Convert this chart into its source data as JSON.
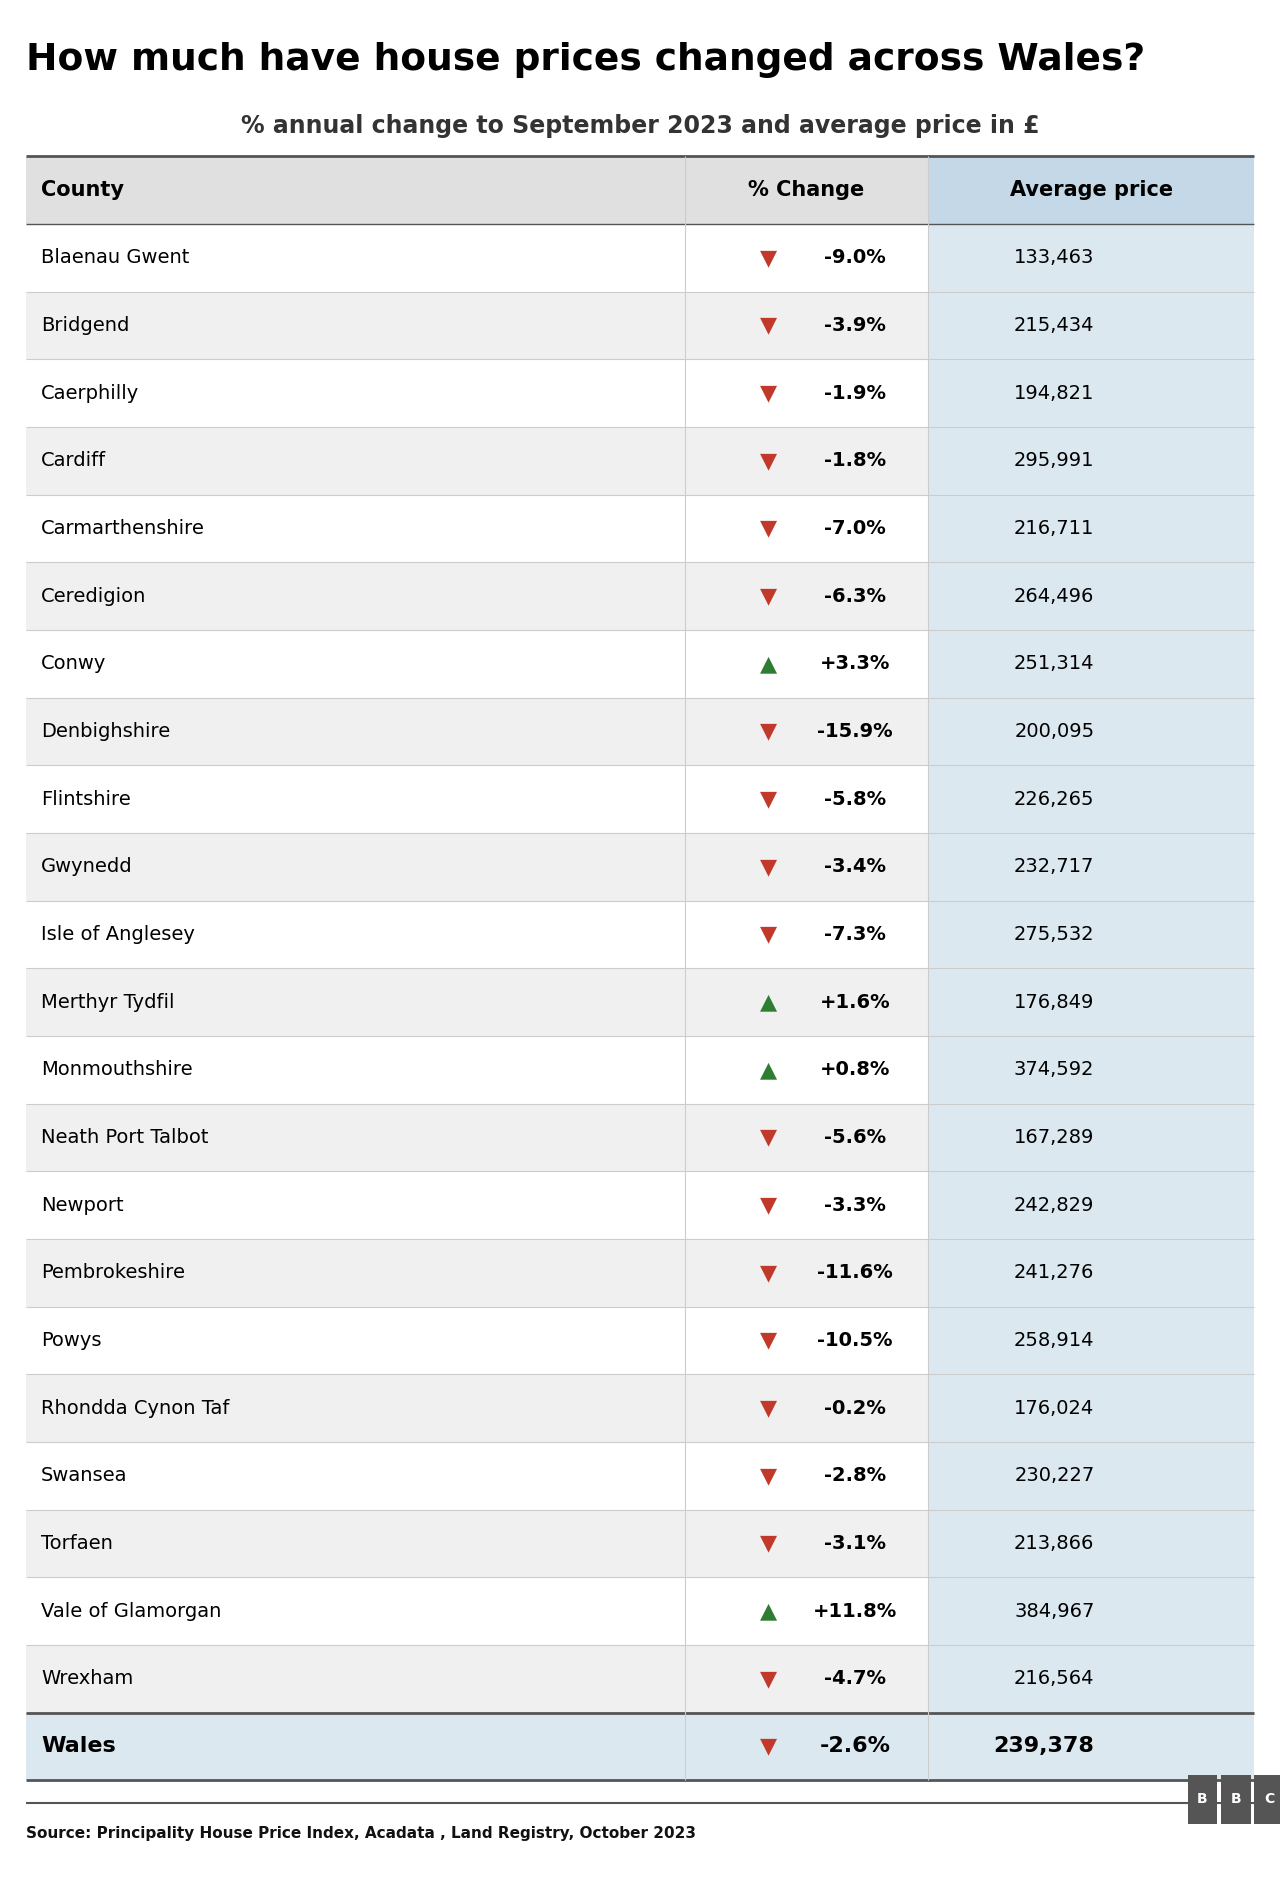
{
  "title": "How much have house prices changed across Wales?",
  "subtitle": "% annual change to September 2023 and average price in £",
  "source": "Source: Principality House Price Index, Acadata , Land Registry, October 2023",
  "col_headers": [
    "County",
    "% Change",
    "Average price"
  ],
  "rows": [
    {
      "county": "Blaenau Gwent",
      "change": "-9.0%",
      "avg_price": "133,463",
      "direction": "down"
    },
    {
      "county": "Bridgend",
      "change": "-3.9%",
      "avg_price": "215,434",
      "direction": "down"
    },
    {
      "county": "Caerphilly",
      "change": "-1.9%",
      "avg_price": "194,821",
      "direction": "down"
    },
    {
      "county": "Cardiff",
      "change": "-1.8%",
      "avg_price": "295,991",
      "direction": "down"
    },
    {
      "county": "Carmarthenshire",
      "change": "-7.0%",
      "avg_price": "216,711",
      "direction": "down"
    },
    {
      "county": "Ceredigion",
      "change": "-6.3%",
      "avg_price": "264,496",
      "direction": "down"
    },
    {
      "county": "Conwy",
      "change": "+3.3%",
      "avg_price": "251,314",
      "direction": "up"
    },
    {
      "county": "Denbighshire",
      "change": "-15.9%",
      "avg_price": "200,095",
      "direction": "down"
    },
    {
      "county": "Flintshire",
      "change": "-5.8%",
      "avg_price": "226,265",
      "direction": "down"
    },
    {
      "county": "Gwynedd",
      "change": "-3.4%",
      "avg_price": "232,717",
      "direction": "down"
    },
    {
      "county": "Isle of Anglesey",
      "change": "-7.3%",
      "avg_price": "275,532",
      "direction": "down"
    },
    {
      "county": "Merthyr Tydfil",
      "change": "+1.6%",
      "avg_price": "176,849",
      "direction": "up"
    },
    {
      "county": "Monmouthshire",
      "change": "+0.8%",
      "avg_price": "374,592",
      "direction": "up"
    },
    {
      "county": "Neath Port Talbot",
      "change": "-5.6%",
      "avg_price": "167,289",
      "direction": "down"
    },
    {
      "county": "Newport",
      "change": "-3.3%",
      "avg_price": "242,829",
      "direction": "down"
    },
    {
      "county": "Pembrokeshire",
      "change": "-11.6%",
      "avg_price": "241,276",
      "direction": "down"
    },
    {
      "county": "Powys",
      "change": "-10.5%",
      "avg_price": "258,914",
      "direction": "down"
    },
    {
      "county": "Rhondda Cynon Taf",
      "change": "-0.2%",
      "avg_price": "176,024",
      "direction": "down"
    },
    {
      "county": "Swansea",
      "change": "-2.8%",
      "avg_price": "230,227",
      "direction": "down"
    },
    {
      "county": "Torfaen",
      "change": "-3.1%",
      "avg_price": "213,866",
      "direction": "down"
    },
    {
      "county": "Vale of Glamorgan",
      "change": "+11.8%",
      "avg_price": "384,967",
      "direction": "up"
    },
    {
      "county": "Wrexham",
      "change": "-4.7%",
      "avg_price": "216,564",
      "direction": "down"
    }
  ],
  "footer_row": {
    "county": "Wales",
    "change": "-2.6%",
    "avg_price": "239,378",
    "direction": "down"
  },
  "bg_color": "#f5f5f5",
  "header_bg_color": "#e0e0e0",
  "right_col_bg": "#dce8f0",
  "right_col_header_bg": "#c4d8e8",
  "footer_bg": "#dce8f0",
  "arrow_up_color": "#2e7d32",
  "arrow_down_color": "#c0392b",
  "title_color": "#000000",
  "text_color": "#000000",
  "header_text_color": "#000000",
  "grid_line_color": "#cccccc",
  "strong_line_color": "#555555"
}
